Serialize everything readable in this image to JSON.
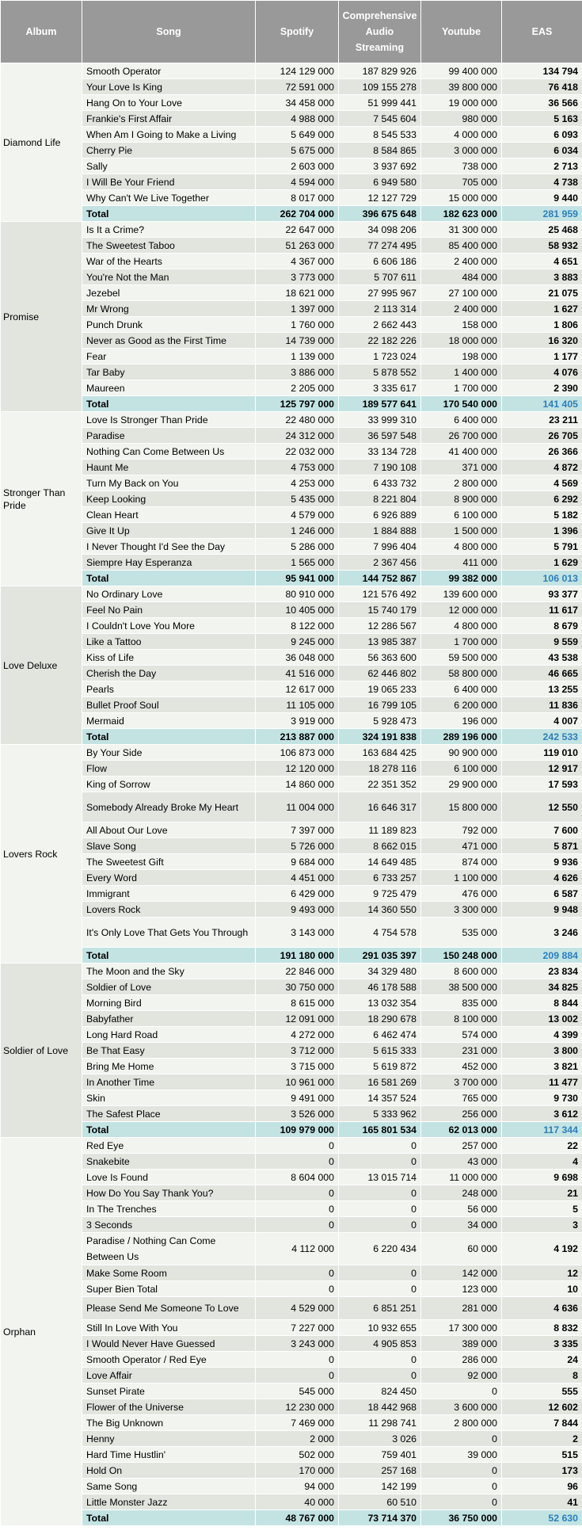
{
  "headers": {
    "album": "Album",
    "song": "Song",
    "spotify": "Spotify",
    "cas": "Comprehensive Audio Streaming",
    "youtube": "Youtube",
    "eas": "EAS"
  },
  "total_label": "Total",
  "colors": {
    "header_bg": "#999999",
    "row_light": "#f2f4ef",
    "row_dark": "#e2e4de",
    "total_bg": "#c3e3e3",
    "total_eas": "#2d7fb8"
  },
  "albums": [
    {
      "name": "Diamond Life",
      "songs": [
        [
          "Smooth Operator",
          "124 129 000",
          "187 829 926",
          "99 400 000",
          "134 794"
        ],
        [
          "Your Love Is King",
          "72 591 000",
          "109 155 278",
          "39 800 000",
          "76 418"
        ],
        [
          "Hang On to Your Love",
          "34 458 000",
          "51 999 441",
          "19 000 000",
          "36 566"
        ],
        [
          "Frankie's First Affair",
          "4 988 000",
          "7 545 604",
          "980 000",
          "5 163"
        ],
        [
          "When Am I Going to Make a Living",
          "5 649 000",
          "8 545 533",
          "4 000 000",
          "6 093"
        ],
        [
          "Cherry Pie",
          "5 675 000",
          "8 584 865",
          "3 000 000",
          "6 034"
        ],
        [
          "Sally",
          "2 603 000",
          "3 937 692",
          "738 000",
          "2 713"
        ],
        [
          "I Will Be Your Friend",
          "4 594 000",
          "6 949 580",
          "705 000",
          "4 738"
        ],
        [
          "Why Can't We Live Together",
          "8 017 000",
          "12 127 729",
          "15 000 000",
          "9 440"
        ]
      ],
      "total": [
        "262 704 000",
        "396 675 648",
        "182 623 000",
        "281 959"
      ]
    },
    {
      "name": "Promise",
      "songs": [
        [
          "Is It a Crime?",
          "22 647 000",
          "34 098 206",
          "31 300 000",
          "25 468"
        ],
        [
          "The Sweetest Taboo",
          "51 263 000",
          "77 274 495",
          "85 400 000",
          "58 932"
        ],
        [
          "War of the Hearts",
          "4 367 000",
          "6 606 186",
          "2 400 000",
          "4 651"
        ],
        [
          "You're Not the Man",
          "3 773 000",
          "5 707 611",
          "484 000",
          "3 883"
        ],
        [
          "Jezebel",
          "18 621 000",
          "27 995 967",
          "27 100 000",
          "21 075"
        ],
        [
          "Mr Wrong",
          "1 397 000",
          "2 113 314",
          "2 400 000",
          "1 627"
        ],
        [
          "Punch Drunk",
          "1 760 000",
          "2 662 443",
          "158 000",
          "1 806"
        ],
        [
          "Never as Good as the First Time",
          "14 739 000",
          "22 182 226",
          "18 000 000",
          "16 320"
        ],
        [
          "Fear",
          "1 139 000",
          "1 723 024",
          "198 000",
          "1 177"
        ],
        [
          "Tar Baby",
          "3 886 000",
          "5 878 552",
          "1 400 000",
          "4 076"
        ],
        [
          "Maureen",
          "2 205 000",
          "3 335 617",
          "1 700 000",
          "2 390"
        ]
      ],
      "total": [
        "125 797 000",
        "189 577 641",
        "170 540 000",
        "141 405"
      ]
    },
    {
      "name": "Stronger Than Pride",
      "songs": [
        [
          "Love Is Stronger Than Pride",
          "22 480 000",
          "33 999 310",
          "6 400 000",
          "23 211"
        ],
        [
          "Paradise",
          "24 312 000",
          "36 597 548",
          "26 700 000",
          "26 705"
        ],
        [
          "Nothing Can Come Between Us",
          "22 032 000",
          "33 134 728",
          "41 400 000",
          "26 366"
        ],
        [
          "Haunt Me",
          "4 753 000",
          "7 190 108",
          "371 000",
          "4 872"
        ],
        [
          "Turn My Back on You",
          "4 253 000",
          "6 433 732",
          "2 800 000",
          "4 569"
        ],
        [
          "Keep Looking",
          "5 435 000",
          "8 221 804",
          "8 900 000",
          "6 292"
        ],
        [
          "Clean Heart",
          "4 579 000",
          "6 926 889",
          "6 100 000",
          "5 182"
        ],
        [
          "Give It Up",
          "1 246 000",
          "1 884 888",
          "1 500 000",
          "1 396"
        ],
        [
          "I Never Thought I'd See the Day",
          "5 286 000",
          "7 996 404",
          "4 800 000",
          "5 791"
        ],
        [
          "Siempre Hay Esperanza",
          "1 565 000",
          "2 367 456",
          "411 000",
          "1 629"
        ]
      ],
      "total": [
        "95 941 000",
        "144 752 867",
        "99 382 000",
        "106 013"
      ]
    },
    {
      "name": "Love Deluxe",
      "songs": [
        [
          "No Ordinary Love",
          "80 910 000",
          "121 576 492",
          "139 600 000",
          "93 377"
        ],
        [
          "Feel No Pain",
          "10 405 000",
          "15 740 179",
          "12 000 000",
          "11 617"
        ],
        [
          "I Couldn't Love You More",
          "8 122 000",
          "12 286 567",
          "4 800 000",
          "8 679"
        ],
        [
          "Like a Tattoo",
          "9 245 000",
          "13 985 387",
          "1 700 000",
          "9 559"
        ],
        [
          "Kiss of Life",
          "36 048 000",
          "56 363 600",
          "59 500 000",
          "43 538"
        ],
        [
          "Cherish the Day",
          "41 516 000",
          "62 446 802",
          "58 800 000",
          "46 665"
        ],
        [
          "Pearls",
          "12 617 000",
          "19 065 233",
          "6 400 000",
          "13 255"
        ],
        [
          "Bullet Proof Soul",
          "11 105 000",
          "16 799 105",
          "6 200 000",
          "11 836"
        ],
        [
          "Mermaid",
          "3 919 000",
          "5 928 473",
          "196 000",
          "4 007"
        ]
      ],
      "total": [
        "213 887 000",
        "324 191 838",
        "289 196 000",
        "242 533"
      ]
    },
    {
      "name": "Lovers Rock",
      "songs": [
        [
          "By Your Side",
          "106 873 000",
          "163 684 425",
          "90 900 000",
          "119 010"
        ],
        [
          "Flow",
          "12 120 000",
          "18 278 116",
          "6 100 000",
          "12 917"
        ],
        [
          "King of Sorrow",
          "14 860 000",
          "22 351 352",
          "29 900 000",
          "17 593"
        ],
        [
          "Somebody Already Broke My Heart",
          "11 004 000",
          "16 646 317",
          "15 800 000",
          "12 550"
        ],
        [
          "All About Our Love",
          "7 397 000",
          "11 189 823",
          "792 000",
          "7 600"
        ],
        [
          "Slave Song",
          "5 726 000",
          "8 662 015",
          "471 000",
          "5 871"
        ],
        [
          "The Sweetest Gift",
          "9 684 000",
          "14 649 485",
          "874 000",
          "9 936"
        ],
        [
          "Every Word",
          "4 451 000",
          "6 733 257",
          "1 100 000",
          "4 626"
        ],
        [
          "Immigrant",
          "6 429 000",
          "9 725 479",
          "476 000",
          "6 587"
        ],
        [
          "Lovers Rock",
          "9 493 000",
          "14 360 550",
          "3 300 000",
          "9 948"
        ],
        [
          "It's Only Love That Gets You Through",
          "3 143 000",
          "4 754 578",
          "535 000",
          "3 246"
        ]
      ],
      "total": [
        "191 180 000",
        "291 035 397",
        "150 248 000",
        "209 884"
      ]
    },
    {
      "name": "Soldier of Love",
      "songs": [
        [
          "The Moon and the Sky",
          "22 846 000",
          "34 329 480",
          "8 600 000",
          "23 834"
        ],
        [
          "Soldier of Love",
          "30 750 000",
          "46 178 588",
          "38 500 000",
          "34 825"
        ],
        [
          "Morning Bird",
          "8 615 000",
          "13 032 354",
          "835 000",
          "8 844"
        ],
        [
          "Babyfather",
          "12 091 000",
          "18 290 678",
          "8 100 000",
          "13 002"
        ],
        [
          "Long Hard Road",
          "4 272 000",
          "6 462 474",
          "574 000",
          "4 399"
        ],
        [
          "Be That Easy",
          "3 712 000",
          "5 615 333",
          "231 000",
          "3 800"
        ],
        [
          "Bring Me Home",
          "3 715 000",
          "5 619 872",
          "452 000",
          "3 821"
        ],
        [
          "In Another Time",
          "10 961 000",
          "16 581 269",
          "3 700 000",
          "11 477"
        ],
        [
          "Skin",
          "9 491 000",
          "14 357 524",
          "765 000",
          "9 730"
        ],
        [
          "The Safest Place",
          "3 526 000",
          "5 333 962",
          "256 000",
          "3 612"
        ]
      ],
      "total": [
        "109 979 000",
        "165 801 534",
        "62 013 000",
        "117 344"
      ]
    },
    {
      "name": "Orphan",
      "songs": [
        [
          "Red Eye",
          "0",
          "0",
          "257 000",
          "22"
        ],
        [
          "Snakebite",
          "0",
          "0",
          "43 000",
          "4"
        ],
        [
          "Love Is Found",
          "8 604 000",
          "13 015 714",
          "11 000 000",
          "9 698"
        ],
        [
          "How Do You Say Thank You?",
          "0",
          "0",
          "248 000",
          "21"
        ],
        [
          "In The Trenches",
          "0",
          "0",
          "56 000",
          "5"
        ],
        [
          "3 Seconds",
          "0",
          "0",
          "34 000",
          "3"
        ],
        [
          "Paradise / Nothing Can Come Between Us",
          "4 112 000",
          "6 220 434",
          "60 000",
          "4 192"
        ],
        [
          "Make Some Room",
          "0",
          "0",
          "142 000",
          "12"
        ],
        [
          "Super Bien Total",
          "0",
          "0",
          "123 000",
          "10"
        ],
        [
          "Please Send Me Someone To Love",
          "4 529 000",
          "6 851 251",
          "281 000",
          "4 636"
        ],
        [
          "Still In Love With You",
          "7 227 000",
          "10 932 655",
          "17 300 000",
          "8 832"
        ],
        [
          "I Would Never Have Guessed",
          "3 243 000",
          "4 905 853",
          "389 000",
          "3 335"
        ],
        [
          "Smooth Operator / Red Eye",
          "0",
          "0",
          "286 000",
          "24"
        ],
        [
          "Love Affair",
          "0",
          "0",
          "92 000",
          "8"
        ],
        [
          "Sunset Pirate",
          "545 000",
          "824 450",
          "0",
          "555"
        ],
        [
          "Flower of the Universe",
          "12 230 000",
          "18 442 968",
          "3 600 000",
          "12 602"
        ],
        [
          "The Big Unknown",
          "7 469 000",
          "11 298 741",
          "2 800 000",
          "7 844"
        ],
        [
          "Henny",
          "2 000",
          "3 026",
          "0",
          "2"
        ],
        [
          "Hard Time Hustlin'",
          "502 000",
          "759 401",
          "39 000",
          "515"
        ],
        [
          "Hold On",
          "170 000",
          "257 168",
          "0",
          "173"
        ],
        [
          "Same Song",
          "94 000",
          "142 199",
          "0",
          "96"
        ],
        [
          "Little Monster Jazz",
          "40 000",
          "60 510",
          "0",
          "41"
        ]
      ],
      "total": [
        "48 767 000",
        "73 714 370",
        "36 750 000",
        "52 630"
      ]
    }
  ]
}
